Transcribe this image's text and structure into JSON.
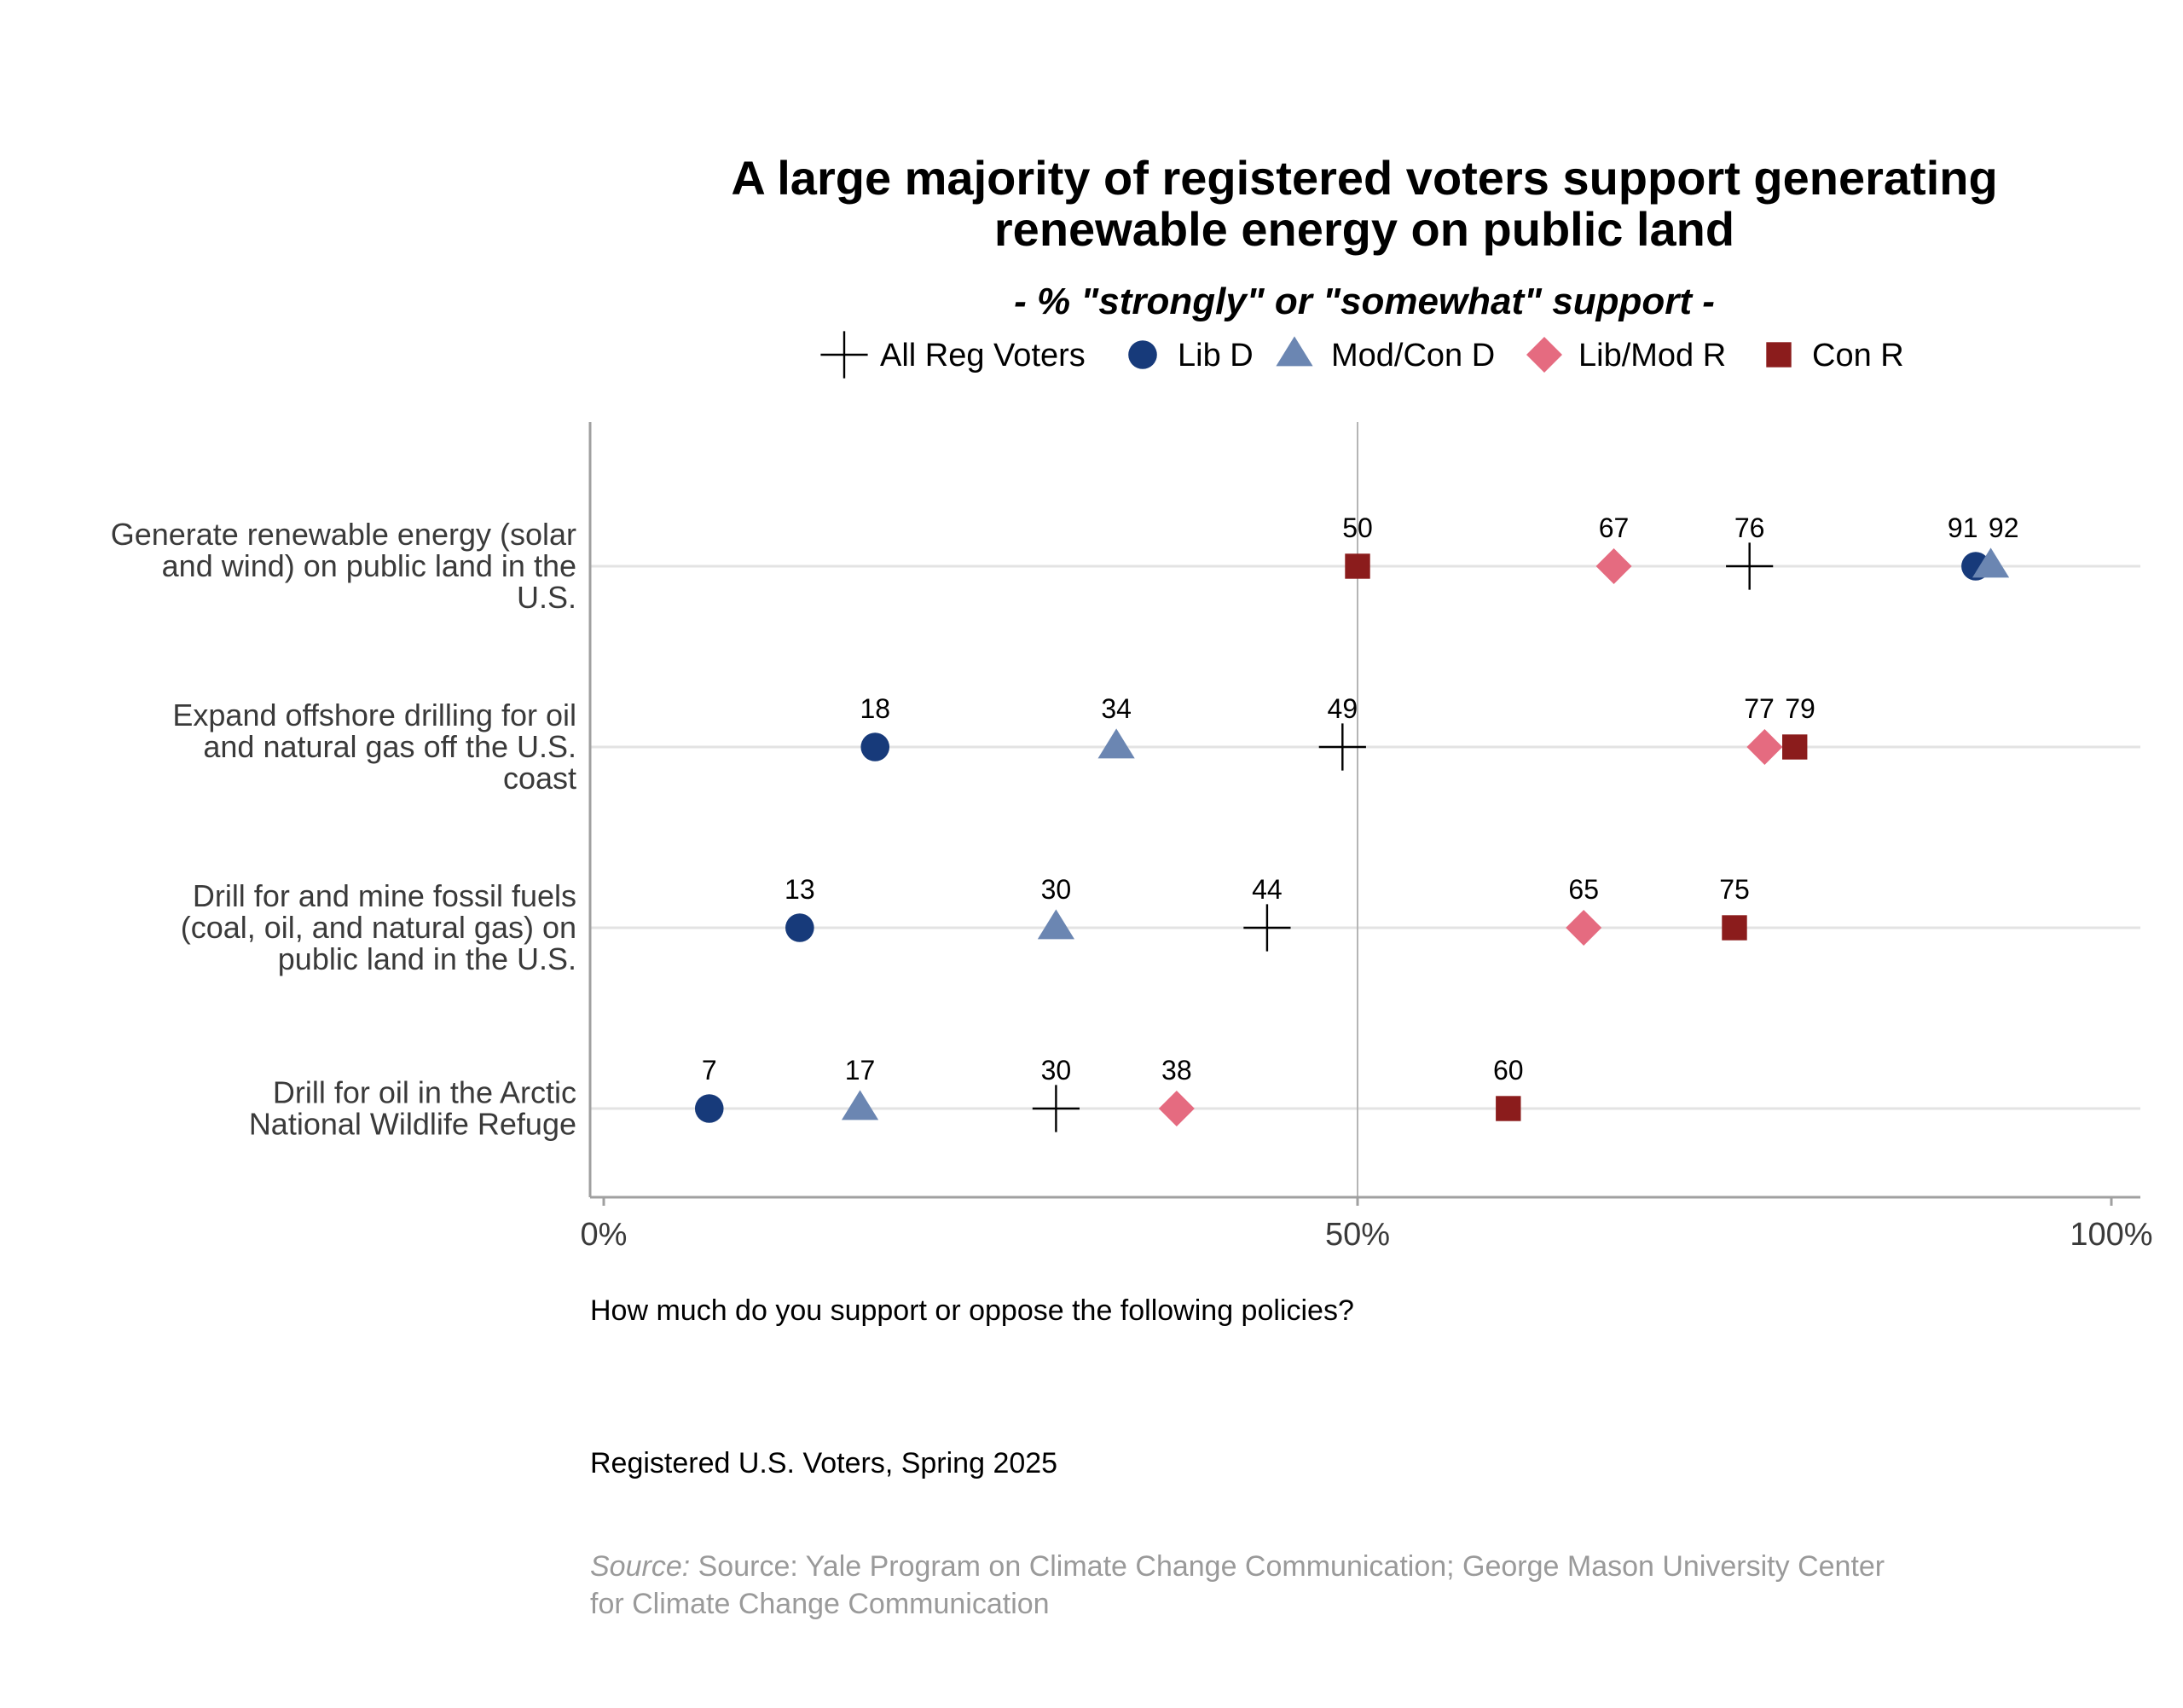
{
  "chart_data": {
    "type": "scatter",
    "title_lines": [
      "A large majority of registered voters support generating",
      "renewable energy on public land"
    ],
    "subtitle": "- % \"strongly\" or \"somewhat\" support -",
    "x_tick_labels": [
      "0%",
      "50%",
      "100%"
    ],
    "xlim": [
      0,
      100
    ],
    "reference_line": 50,
    "series": [
      {
        "name": "All Reg Voters",
        "marker": "plus",
        "color": "#000000"
      },
      {
        "name": "Lib D",
        "marker": "circle",
        "color": "#173a7a"
      },
      {
        "name": "Mod/Con D",
        "marker": "triangle",
        "color": "#6b86b2"
      },
      {
        "name": "Lib/Mod R",
        "marker": "diamond",
        "color": "#e56b80"
      },
      {
        "name": "Con R",
        "marker": "square",
        "color": "#8b1c1c"
      }
    ],
    "categories": [
      {
        "lines": [
          "Generate renewable energy (solar",
          "and wind) on public land in the",
          "U.S."
        ],
        "values": {
          "All Reg Voters": 76,
          "Lib D": 91,
          "Mod/Con D": 92,
          "Lib/Mod R": 67,
          "Con R": 50
        }
      },
      {
        "lines": [
          "Expand offshore drilling for oil",
          "and natural gas off the U.S.",
          "coast"
        ],
        "values": {
          "All Reg Voters": 49,
          "Lib D": 18,
          "Mod/Con D": 34,
          "Lib/Mod R": 77,
          "Con R": 79
        }
      },
      {
        "lines": [
          "Drill for and mine fossil fuels",
          "(coal, oil, and natural gas) on",
          "public land in the U.S."
        ],
        "values": {
          "All Reg Voters": 44,
          "Lib D": 13,
          "Mod/Con D": 30,
          "Lib/Mod R": 65,
          "Con R": 75
        }
      },
      {
        "lines": [
          "Drill for oil in the Arctic",
          "National Wildlife Refuge"
        ],
        "values": {
          "All Reg Voters": 30,
          "Lib D": 7,
          "Mod/Con D": 17,
          "Lib/Mod R": 38,
          "Con R": 60
        }
      }
    ],
    "question": "How much do you support or oppose the following policies?",
    "population": "Registered U.S. Voters, Spring 2025",
    "source_prefix": "Source:",
    "source_lines": [
      "Source: Yale Program on Climate Change Communication; George Mason University Center",
      "for Climate Change Communication"
    ],
    "colors": {
      "gridline": "#e3e3e3",
      "axis": "#a0a0a0",
      "reference_line": "#b5b5b5"
    }
  }
}
